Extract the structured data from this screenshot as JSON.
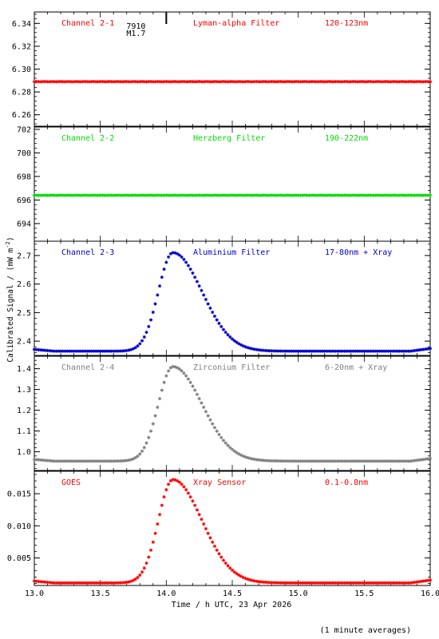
{
  "chart_data": {
    "type": "scatter",
    "x_label": "Time / h UTC, 23 Apr 2026",
    "y_label": "Calibrated Signal / (mW m",
    "y_label_sup": "-2",
    "y_label_close": ")",
    "footnote": "(1 minute averages)",
    "x_range": [
      13.0,
      16.0
    ],
    "x_ticks": [
      13.0,
      13.5,
      14.0,
      14.5,
      15.0,
      15.5,
      16.0
    ],
    "x_tick_labels": [
      "13.0",
      "13.5",
      "14.0",
      "14.5",
      "15.0",
      "15.5",
      "16.0"
    ],
    "event_marker": {
      "x": 14.0,
      "labels": [
        "7910",
        "M1.7"
      ]
    },
    "peak_time": 14.05,
    "panels": [
      {
        "channel": "Channel 2-1",
        "filter": "Lyman-alpha Filter",
        "band": "120-123nm",
        "color": "#ff0000",
        "y_range": [
          6.25,
          6.35
        ],
        "y_ticks": [
          6.26,
          6.28,
          6.3,
          6.32,
          6.34
        ],
        "y_tick_labels": [
          "6.26",
          "6.28",
          "6.30",
          "6.32",
          "6.34"
        ],
        "flare": false,
        "level": 6.289
      },
      {
        "channel": "Channel 2-2",
        "filter": "Herzberg Filter",
        "band": "190-222nm",
        "color": "#00dd00",
        "y_range": [
          692.5,
          702.2
        ],
        "y_ticks": [
          694,
          696,
          698,
          700,
          702
        ],
        "y_tick_labels": [
          "694",
          "696",
          "698",
          "700",
          "702"
        ],
        "flare": false,
        "level": 696.4
      },
      {
        "channel": "Channel 2-3",
        "filter": "Aluminium Filter",
        "band": "17-80nm + Xray",
        "color": "#0000cc",
        "y_range": [
          2.35,
          2.75
        ],
        "y_ticks": [
          2.4,
          2.5,
          2.6,
          2.7
        ],
        "y_tick_labels": [
          "2.4",
          "2.5",
          "2.6",
          "2.7"
        ],
        "flare": true,
        "baseline": 2.365,
        "peak": 2.71
      },
      {
        "channel": "Channel 2-4",
        "filter": "Zirconium Filter",
        "band": "6-20nm + Xray",
        "color": "#808080",
        "y_range": [
          0.91,
          1.46
        ],
        "y_ticks": [
          1.0,
          1.1,
          1.2,
          1.3,
          1.4
        ],
        "y_tick_labels": [
          "1.0",
          "1.1",
          "1.2",
          "1.3",
          "1.4"
        ],
        "flare": true,
        "baseline": 0.955,
        "peak": 1.41
      },
      {
        "channel": "GOES",
        "filter": "Xray Sensor",
        "band": "0.1-0.8nm",
        "color": "#ff0000",
        "y_range": [
          0.0007,
          0.0185
        ],
        "y_ticks": [
          0.005,
          0.01,
          0.015
        ],
        "y_tick_labels": [
          "0.005",
          "0.010",
          "0.015"
        ],
        "flare": true,
        "baseline": 0.0011,
        "peak": 0.0172
      }
    ]
  }
}
